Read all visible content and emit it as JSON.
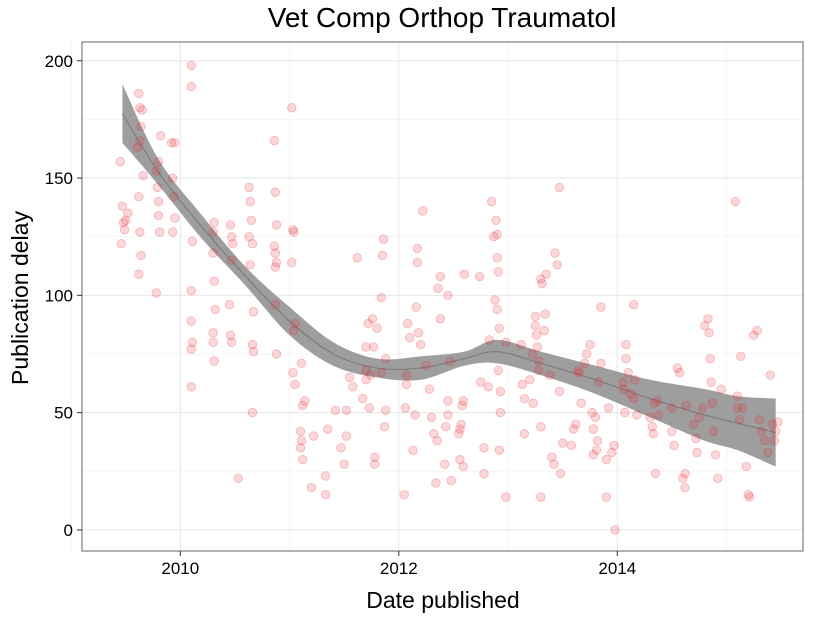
{
  "chart_data": {
    "type": "scatter",
    "title": "Vet Comp Orthop Traumatol",
    "xlabel": "Date published",
    "ylabel": "Publication delay",
    "x_ticks": [
      "2010",
      "2012",
      "2014"
    ],
    "y_ticks": [
      "0",
      "50",
      "100",
      "150",
      "200"
    ],
    "xlim": [
      2009.1,
      2015.7
    ],
    "ylim": [
      -9,
      208
    ],
    "grid": true,
    "point_color": "#e8212a",
    "band_color": "#999999",
    "trend_color": "#7d7d7d",
    "smooth": {
      "x": [
        2009.47,
        2009.8,
        2010.2,
        2010.6,
        2011.0,
        2011.4,
        2011.8,
        2012.2,
        2012.6,
        2012.9,
        2013.3,
        2013.8,
        2014.3,
        2014.8,
        2015.1,
        2015.45
      ],
      "upper": [
        190,
        158,
        134,
        112,
        95,
        80,
        73,
        74,
        76,
        81,
        76,
        70,
        64,
        60,
        57,
        56
      ],
      "lower": [
        165,
        147,
        124,
        104,
        83,
        70,
        65,
        64,
        70,
        71,
        66,
        58,
        48,
        38,
        34,
        27
      ]
    },
    "points": [
      [
        2009.45,
        157
      ],
      [
        2009.47,
        138
      ],
      [
        2009.48,
        131
      ],
      [
        2009.49,
        128
      ],
      [
        2009.5,
        132
      ],
      [
        2009.46,
        122
      ],
      [
        2009.52,
        135
      ],
      [
        2009.62,
        186
      ],
      [
        2009.64,
        172
      ],
      [
        2009.63,
        166
      ],
      [
        2009.61,
        163
      ],
      [
        2009.66,
        151
      ],
      [
        2009.62,
        142
      ],
      [
        2009.63,
        127
      ],
      [
        2009.64,
        117
      ],
      [
        2009.62,
        109
      ],
      [
        2009.63,
        180
      ],
      [
        2009.65,
        179
      ],
      [
        2009.78,
        153
      ],
      [
        2009.79,
        146
      ],
      [
        2009.8,
        140
      ],
      [
        2009.81,
        127
      ],
      [
        2009.8,
        134
      ],
      [
        2009.78,
        101
      ],
      [
        2009.82,
        168
      ],
      [
        2009.8,
        157
      ],
      [
        2009.92,
        165
      ],
      [
        2009.93,
        150
      ],
      [
        2009.94,
        142
      ],
      [
        2009.95,
        133
      ],
      [
        2009.93,
        127
      ],
      [
        2009.95,
        165
      ],
      [
        2010.1,
        198
      ],
      [
        2010.1,
        189
      ],
      [
        2010.11,
        123
      ],
      [
        2010.1,
        102
      ],
      [
        2010.1,
        89
      ],
      [
        2010.11,
        80
      ],
      [
        2010.1,
        77
      ],
      [
        2010.1,
        61
      ],
      [
        2010.3,
        127
      ],
      [
        2010.31,
        131
      ],
      [
        2010.3,
        118
      ],
      [
        2010.31,
        106
      ],
      [
        2010.32,
        94
      ],
      [
        2010.3,
        84
      ],
      [
        2010.3,
        80
      ],
      [
        2010.31,
        72
      ],
      [
        2010.46,
        130
      ],
      [
        2010.47,
        125
      ],
      [
        2010.48,
        122
      ],
      [
        2010.47,
        115
      ],
      [
        2010.45,
        96
      ],
      [
        2010.46,
        83
      ],
      [
        2010.47,
        80
      ],
      [
        2010.53,
        22
      ],
      [
        2010.63,
        146
      ],
      [
        2010.64,
        140
      ],
      [
        2010.65,
        132
      ],
      [
        2010.63,
        125
      ],
      [
        2010.66,
        122
      ],
      [
        2010.64,
        113
      ],
      [
        2010.67,
        93
      ],
      [
        2010.66,
        79
      ],
      [
        2010.67,
        76
      ],
      [
        2010.66,
        50
      ],
      [
        2010.86,
        166
      ],
      [
        2010.87,
        144
      ],
      [
        2010.88,
        130
      ],
      [
        2010.86,
        121
      ],
      [
        2010.87,
        118
      ],
      [
        2010.88,
        114
      ],
      [
        2010.87,
        112
      ],
      [
        2010.87,
        96
      ],
      [
        2010.88,
        75
      ],
      [
        2011.02,
        180
      ],
      [
        2011.03,
        128
      ],
      [
        2011.04,
        127
      ],
      [
        2011.02,
        114
      ],
      [
        2011.05,
        88
      ],
      [
        2011.04,
        85
      ],
      [
        2011.03,
        67
      ],
      [
        2011.05,
        62
      ],
      [
        2011.1,
        42
      ],
      [
        2011.11,
        38
      ],
      [
        2011.1,
        35
      ],
      [
        2011.12,
        30
      ],
      [
        2011.14,
        55
      ],
      [
        2011.12,
        53
      ],
      [
        2011.11,
        71
      ],
      [
        2011.2,
        18
      ],
      [
        2011.22,
        40
      ],
      [
        2011.33,
        23
      ],
      [
        2011.33,
        15
      ],
      [
        2011.35,
        43
      ],
      [
        2011.42,
        51
      ],
      [
        2011.47,
        35
      ],
      [
        2011.5,
        28
      ],
      [
        2011.52,
        51
      ],
      [
        2011.52,
        40
      ],
      [
        2011.55,
        65
      ],
      [
        2011.58,
        61
      ],
      [
        2011.62,
        116
      ],
      [
        2011.67,
        56
      ],
      [
        2011.7,
        64
      ],
      [
        2011.7,
        68
      ],
      [
        2011.7,
        78
      ],
      [
        2011.72,
        88
      ],
      [
        2011.76,
        90
      ],
      [
        2011.77,
        78
      ],
      [
        2011.74,
        66
      ],
      [
        2011.73,
        52
      ],
      [
        2011.78,
        31
      ],
      [
        2011.78,
        28
      ],
      [
        2011.8,
        86
      ],
      [
        2011.85,
        117
      ],
      [
        2011.86,
        124
      ],
      [
        2011.84,
        99
      ],
      [
        2011.84,
        67
      ],
      [
        2011.87,
        44
      ],
      [
        2011.88,
        51
      ],
      [
        2011.88,
        73
      ],
      [
        2012.05,
        15
      ],
      [
        2012.06,
        52
      ],
      [
        2012.07,
        62
      ],
      [
        2012.07,
        66
      ],
      [
        2012.08,
        88
      ],
      [
        2012.1,
        82
      ],
      [
        2012.13,
        34
      ],
      [
        2012.15,
        49
      ],
      [
        2012.16,
        95
      ],
      [
        2012.17,
        114
      ],
      [
        2012.17,
        120
      ],
      [
        2012.18,
        84
      ],
      [
        2012.2,
        79
      ],
      [
        2012.22,
        136
      ],
      [
        2012.25,
        70
      ],
      [
        2012.28,
        60
      ],
      [
        2012.3,
        48
      ],
      [
        2012.32,
        41
      ],
      [
        2012.34,
        20
      ],
      [
        2012.36,
        103
      ],
      [
        2012.38,
        108
      ],
      [
        2012.38,
        90
      ],
      [
        2012.35,
        38
      ],
      [
        2012.42,
        28
      ],
      [
        2012.43,
        44
      ],
      [
        2012.45,
        55
      ],
      [
        2012.45,
        49
      ],
      [
        2012.45,
        100
      ],
      [
        2012.47,
        72
      ],
      [
        2012.48,
        21
      ],
      [
        2012.55,
        41
      ],
      [
        2012.56,
        43
      ],
      [
        2012.56,
        30
      ],
      [
        2012.57,
        45
      ],
      [
        2012.58,
        53
      ],
      [
        2012.59,
        55
      ],
      [
        2012.59,
        27
      ],
      [
        2012.6,
        109
      ],
      [
        2012.74,
        108
      ],
      [
        2012.75,
        63
      ],
      [
        2012.78,
        35
      ],
      [
        2012.78,
        24
      ],
      [
        2012.82,
        61
      ],
      [
        2012.83,
        81
      ],
      [
        2012.85,
        140
      ],
      [
        2012.87,
        125
      ],
      [
        2012.89,
        132
      ],
      [
        2012.9,
        126
      ],
      [
        2012.9,
        116
      ],
      [
        2012.91,
        110
      ],
      [
        2012.88,
        98
      ],
      [
        2012.9,
        94
      ],
      [
        2012.92,
        86
      ],
      [
        2012.91,
        68
      ],
      [
        2012.93,
        59
      ],
      [
        2012.93,
        50
      ],
      [
        2012.92,
        34
      ],
      [
        2012.98,
        80
      ],
      [
        2012.98,
        14
      ],
      [
        2013.12,
        79
      ],
      [
        2013.13,
        62
      ],
      [
        2013.15,
        56
      ],
      [
        2013.15,
        41
      ],
      [
        2013.2,
        64
      ],
      [
        2013.22,
        75
      ],
      [
        2013.23,
        54
      ],
      [
        2013.25,
        91
      ],
      [
        2013.25,
        87
      ],
      [
        2013.26,
        83
      ],
      [
        2013.27,
        78
      ],
      [
        2013.28,
        72
      ],
      [
        2013.28,
        68
      ],
      [
        2013.3,
        107
      ],
      [
        2013.31,
        105
      ],
      [
        2013.3,
        44
      ],
      [
        2013.33,
        85
      ],
      [
        2013.34,
        92
      ],
      [
        2013.3,
        14
      ],
      [
        2013.35,
        109
      ],
      [
        2013.38,
        66
      ],
      [
        2013.4,
        31
      ],
      [
        2013.42,
        28
      ],
      [
        2013.43,
        118
      ],
      [
        2013.45,
        113
      ],
      [
        2013.47,
        146
      ],
      [
        2013.47,
        59
      ],
      [
        2013.48,
        24
      ],
      [
        2013.5,
        37
      ],
      [
        2013.58,
        36
      ],
      [
        2013.6,
        43
      ],
      [
        2013.62,
        45
      ],
      [
        2013.64,
        68
      ],
      [
        2013.65,
        67
      ],
      [
        2013.67,
        54
      ],
      [
        2013.7,
        71
      ],
      [
        2013.72,
        75
      ],
      [
        2013.75,
        79
      ],
      [
        2013.77,
        50
      ],
      [
        2013.78,
        43
      ],
      [
        2013.78,
        32
      ],
      [
        2013.8,
        48
      ],
      [
        2013.81,
        34
      ],
      [
        2013.82,
        38
      ],
      [
        2013.83,
        63
      ],
      [
        2013.85,
        95
      ],
      [
        2013.85,
        71
      ],
      [
        2013.9,
        14
      ],
      [
        2013.9,
        30
      ],
      [
        2013.92,
        52
      ],
      [
        2013.95,
        33
      ],
      [
        2013.97,
        36
      ],
      [
        2013.98,
        0
      ],
      [
        2014.05,
        63
      ],
      [
        2014.06,
        60
      ],
      [
        2014.07,
        50
      ],
      [
        2014.08,
        73
      ],
      [
        2014.08,
        79
      ],
      [
        2014.1,
        67
      ],
      [
        2014.12,
        58
      ],
      [
        2014.15,
        96
      ],
      [
        2014.16,
        64
      ],
      [
        2014.15,
        56
      ],
      [
        2014.18,
        49
      ],
      [
        2014.3,
        48
      ],
      [
        2014.32,
        44
      ],
      [
        2014.33,
        41
      ],
      [
        2014.34,
        54
      ],
      [
        2014.35,
        24
      ],
      [
        2014.37,
        55
      ],
      [
        2014.38,
        49
      ],
      [
        2014.5,
        52
      ],
      [
        2014.5,
        42
      ],
      [
        2014.52,
        36
      ],
      [
        2014.55,
        69
      ],
      [
        2014.57,
        67
      ],
      [
        2014.6,
        22
      ],
      [
        2014.62,
        18
      ],
      [
        2014.62,
        24
      ],
      [
        2014.63,
        53
      ],
      [
        2014.7,
        45
      ],
      [
        2014.72,
        39
      ],
      [
        2014.73,
        33
      ],
      [
        2014.75,
        48
      ],
      [
        2014.78,
        52
      ],
      [
        2014.8,
        87
      ],
      [
        2014.83,
        90
      ],
      [
        2014.84,
        84
      ],
      [
        2014.85,
        73
      ],
      [
        2014.86,
        63
      ],
      [
        2014.87,
        54
      ],
      [
        2014.88,
        42
      ],
      [
        2014.9,
        32
      ],
      [
        2014.92,
        22
      ],
      [
        2014.95,
        60
      ],
      [
        2015.08,
        140
      ],
      [
        2015.1,
        57
      ],
      [
        2015.1,
        52
      ],
      [
        2015.12,
        47
      ],
      [
        2015.13,
        74
      ],
      [
        2015.15,
        52
      ],
      [
        2015.18,
        27
      ],
      [
        2015.2,
        15
      ],
      [
        2015.21,
        14
      ],
      [
        2015.25,
        83
      ],
      [
        2015.28,
        85
      ],
      [
        2015.3,
        47
      ],
      [
        2015.32,
        42
      ],
      [
        2015.35,
        38
      ],
      [
        2015.38,
        33
      ],
      [
        2015.4,
        66
      ],
      [
        2015.42,
        45
      ],
      [
        2015.44,
        38
      ],
      [
        2015.45,
        42
      ],
      [
        2015.47,
        46
      ]
    ]
  }
}
